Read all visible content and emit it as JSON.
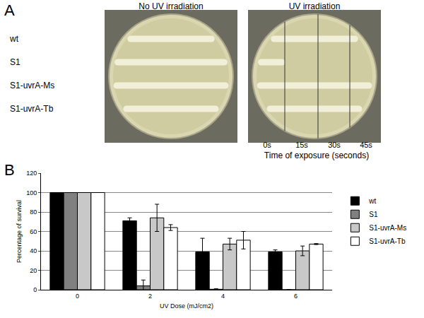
{
  "panel_a": {
    "label": "A",
    "plates": [
      "No UV irradiation",
      "UV irradiation"
    ],
    "strains": [
      "wt",
      "S1",
      "S1-uvrA-Ms",
      "S1-uvrA-Tb"
    ],
    "times": [
      "0s",
      "15s",
      "30s",
      "45s"
    ],
    "time_title": "Time of exposure (seconds)"
  },
  "chart_data": {
    "panel_label": "B",
    "type": "bar",
    "x_label": "UV Dose (mJ/cm2)",
    "y_label": "Percentage of survival",
    "categories": [
      "0",
      "2",
      "4",
      "6"
    ],
    "series": [
      {
        "name": "wt",
        "color": "#000000",
        "values": [
          100,
          71,
          39,
          39
        ],
        "error": [
          0,
          3,
          14,
          2
        ]
      },
      {
        "name": "S1",
        "color": "#808080",
        "values": [
          100,
          4,
          0.5,
          0
        ],
        "error": [
          0,
          6,
          0.5,
          0
        ]
      },
      {
        "name": "S1-uvrA-Ms",
        "color": "#c8c8c8",
        "values": [
          100,
          74,
          47,
          40
        ],
        "error": [
          0,
          14,
          6,
          5
        ]
      },
      {
        "name": "S1-uvrA-Tb",
        "color": "#ffffff",
        "values": [
          100,
          64,
          51,
          47
        ],
        "error": [
          0,
          3,
          9,
          0.5
        ]
      }
    ],
    "ylim": [
      0,
      120
    ],
    "yticks": [
      0,
      20,
      40,
      60,
      80,
      100,
      120
    ],
    "grid": true,
    "legend": "right"
  }
}
